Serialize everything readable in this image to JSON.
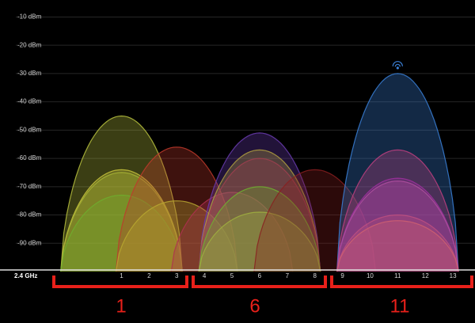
{
  "chart_data": {
    "type": "wifi",
    "x_axis_label": "2.4 GHz",
    "xlim": [
      -3.4,
      13.8
    ],
    "xticks": [
      1,
      2,
      3,
      4,
      5,
      6,
      7,
      8,
      9,
      10,
      11,
      12,
      13
    ],
    "ylim": [
      -100,
      -4
    ],
    "yticks": [
      {
        "value": -10,
        "label": "-10 dBm"
      },
      {
        "value": -20,
        "label": "-20 dBm"
      },
      {
        "value": -30,
        "label": "-30 dBm"
      },
      {
        "value": -40,
        "label": "-40 dBm"
      },
      {
        "value": -50,
        "label": "-50 dBm"
      },
      {
        "value": -60,
        "label": "-60 dBm"
      },
      {
        "value": -70,
        "label": "-70 dBm"
      },
      {
        "value": -80,
        "label": "-80 dBm"
      },
      {
        "value": -90,
        "label": "-90 dBm"
      }
    ],
    "grid": true,
    "networks": [
      {
        "channel": 1,
        "peak": -45,
        "color": "#b9c23e"
      },
      {
        "channel": 1,
        "peak": -64,
        "color": "#c9c63c"
      },
      {
        "channel": 1,
        "peak": -65,
        "color": "#a8b436"
      },
      {
        "channel": 1,
        "peak": -73,
        "color": "#6fae2e"
      },
      {
        "channel": 3,
        "peak": -56,
        "color": "#c0392b"
      },
      {
        "channel": 3,
        "peak": -75,
        "color": "#b8a830"
      },
      {
        "channel": 5,
        "peak": -72,
        "color": "#b03050"
      },
      {
        "channel": 6,
        "peak": -51,
        "color": "#6a3cb0"
      },
      {
        "channel": 6,
        "peak": -57,
        "color": "#b0a040"
      },
      {
        "channel": 6,
        "peak": -60,
        "color": "#a04050"
      },
      {
        "channel": 6,
        "peak": -70,
        "color": "#70b030"
      },
      {
        "channel": 6,
        "peak": -79,
        "color": "#a0b040"
      },
      {
        "channel": 8,
        "peak": -64,
        "color": "#8a1f20"
      },
      {
        "channel": 11,
        "peak": -30,
        "color": "#3a80d8"
      },
      {
        "channel": 11,
        "peak": -57,
        "color": "#c04080"
      },
      {
        "channel": 11,
        "peak": -67,
        "color": "#a030a0"
      },
      {
        "channel": 11,
        "peak": -68,
        "color": "#b050a0"
      },
      {
        "channel": 11,
        "peak": -80,
        "color": "#c05080"
      },
      {
        "channel": 11,
        "peak": -82,
        "color": "#d06070"
      }
    ],
    "annotations": [
      "1",
      "6",
      "11"
    ]
  }
}
